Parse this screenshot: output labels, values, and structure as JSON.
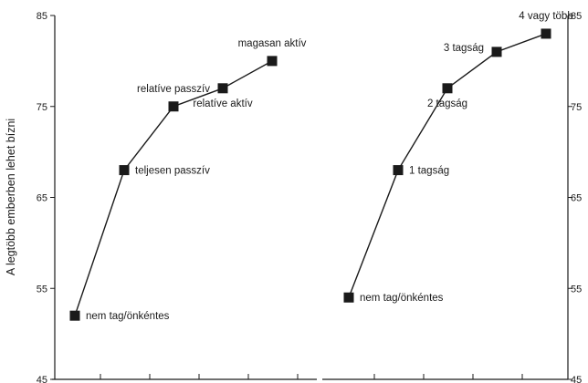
{
  "chart_data": [
    {
      "type": "line",
      "ylabel": "A legtöbb emberben lehet bízni",
      "ylim": [
        45,
        85
      ],
      "yticks": [
        45,
        55,
        65,
        75,
        85
      ],
      "ytick_labels": [
        "45",
        "55",
        "65",
        "75",
        "85"
      ],
      "y_axis_side": "left",
      "categories": [
        "nem tag/önkéntes",
        "teljesen passzív",
        "relatíve passzív",
        "relatíve aktív",
        "magasan aktív"
      ],
      "values": [
        52,
        68,
        75,
        77,
        80
      ],
      "label_placement": [
        "right",
        "right",
        "above",
        "below",
        "above"
      ],
      "marker": "square",
      "color": "#1a1a1a"
    },
    {
      "type": "line",
      "ylim": [
        45,
        85
      ],
      "yticks": [
        45,
        55,
        65,
        75,
        85
      ],
      "ytick_labels": [
        "45",
        "55",
        "65",
        "75",
        "85"
      ],
      "y_axis_side": "right",
      "categories": [
        "nem tag/önkéntes",
        "1 tagság",
        "2 tagság",
        "3 tagság",
        "4 vagy több"
      ],
      "values": [
        54,
        68,
        77,
        81,
        83
      ],
      "label_placement": [
        "right",
        "right",
        "below",
        "above-left",
        "above"
      ],
      "marker": "square",
      "color": "#1a1a1a"
    }
  ]
}
